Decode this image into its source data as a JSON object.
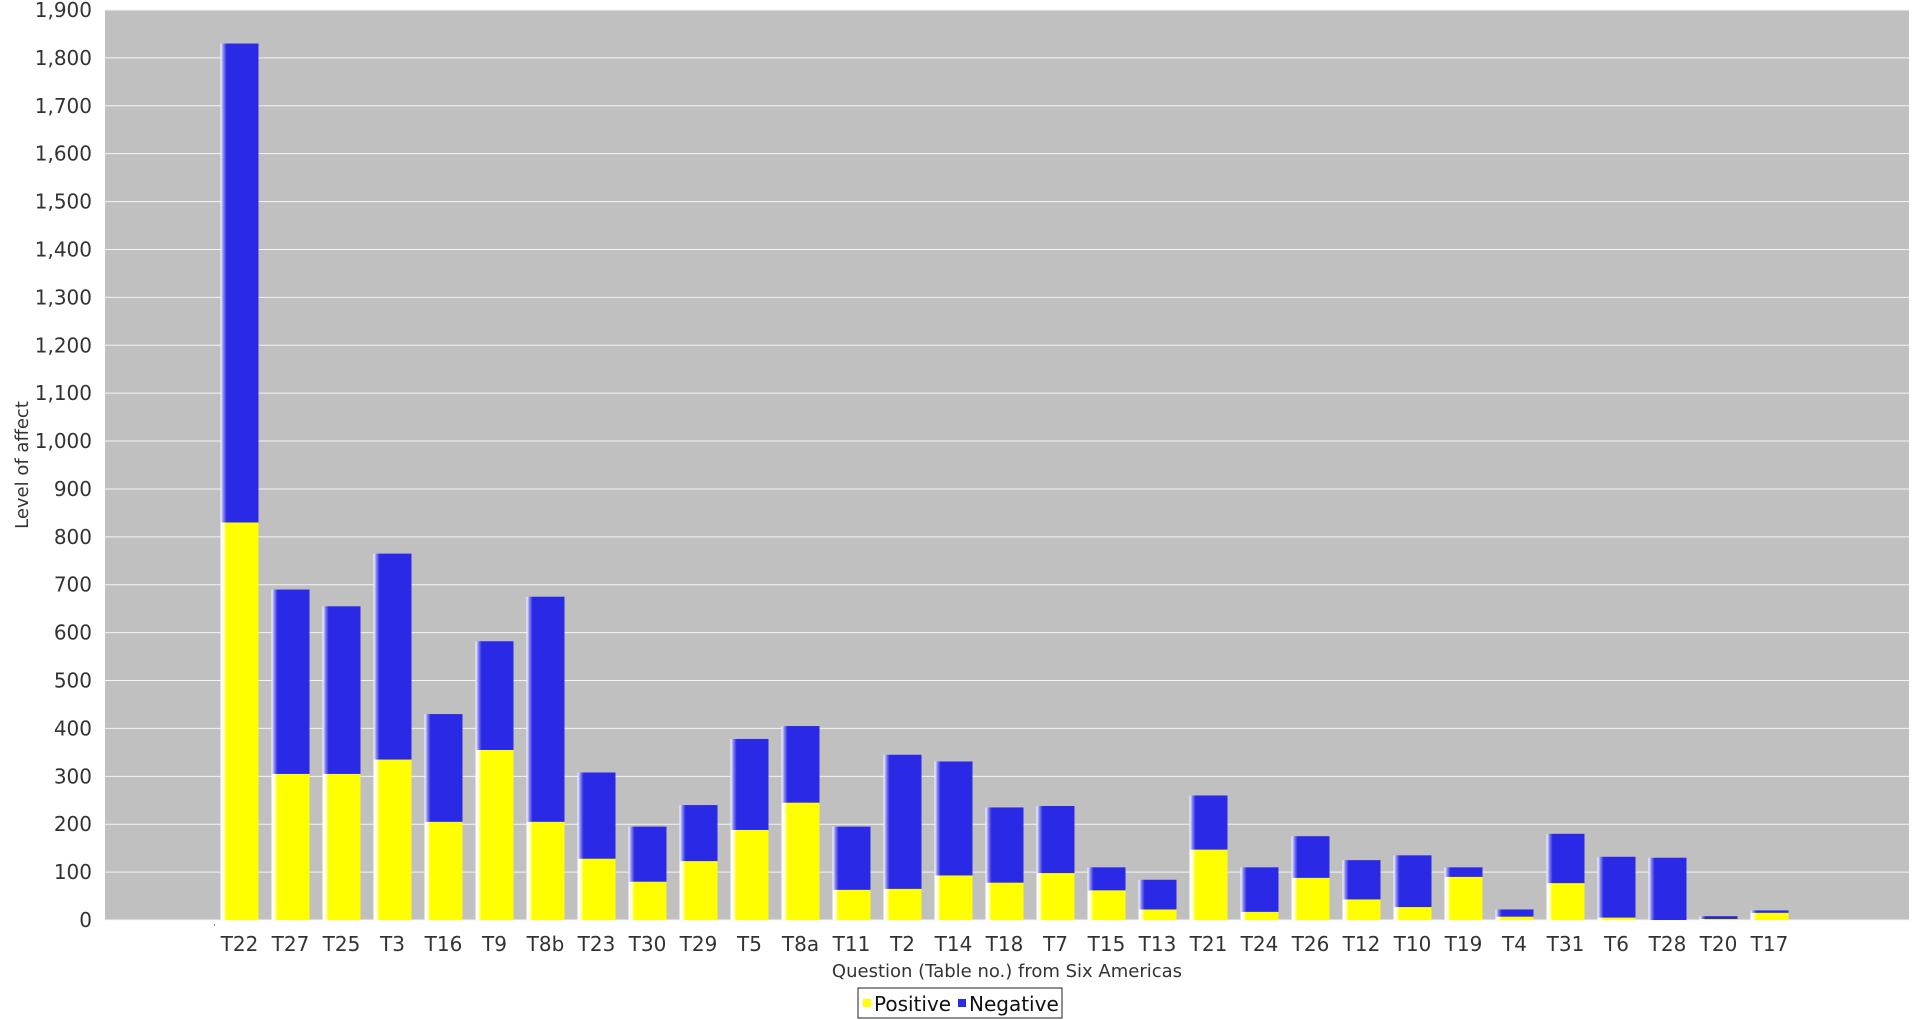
{
  "chart_data": {
    "type": "bar",
    "stacked": true,
    "title": "",
    "xlabel": "Question (Table no.) from Six Americas",
    "ylabel": "Level of affect",
    "ylim": [
      0,
      1900
    ],
    "ytick_step": 100,
    "grid": true,
    "legend_position": "bottom-center",
    "plot_background": "#c0c0c0",
    "leading_blank_category": "",
    "categories": [
      "T22",
      "T27",
      "T25",
      "T3",
      "T16",
      "T9",
      "T8b",
      "T23",
      "T30",
      "T29",
      "T5",
      "T8a",
      "T11",
      "T2",
      "T14",
      "T18",
      "T7",
      "T15",
      "T13",
      "T21",
      "T24",
      "T26",
      "T12",
      "T10",
      "T19",
      "T4",
      "T31",
      "T6",
      "T28",
      "T20",
      "T17"
    ],
    "series": [
      {
        "name": "Positive",
        "color": "#ffff00",
        "values": [
          830,
          305,
          305,
          335,
          205,
          355,
          205,
          128,
          80,
          123,
          188,
          245,
          63,
          65,
          93,
          78,
          98,
          62,
          22,
          147,
          17,
          88,
          43,
          27,
          90,
          7,
          77,
          5,
          0,
          2,
          15
        ]
      },
      {
        "name": "Negative",
        "color": "#2a2ae6",
        "values": [
          1000,
          385,
          350,
          430,
          225,
          227,
          470,
          180,
          115,
          117,
          190,
          160,
          132,
          280,
          238,
          157,
          140,
          48,
          62,
          113,
          93,
          87,
          82,
          108,
          20,
          15,
          103,
          127,
          130,
          6,
          5
        ]
      }
    ]
  }
}
